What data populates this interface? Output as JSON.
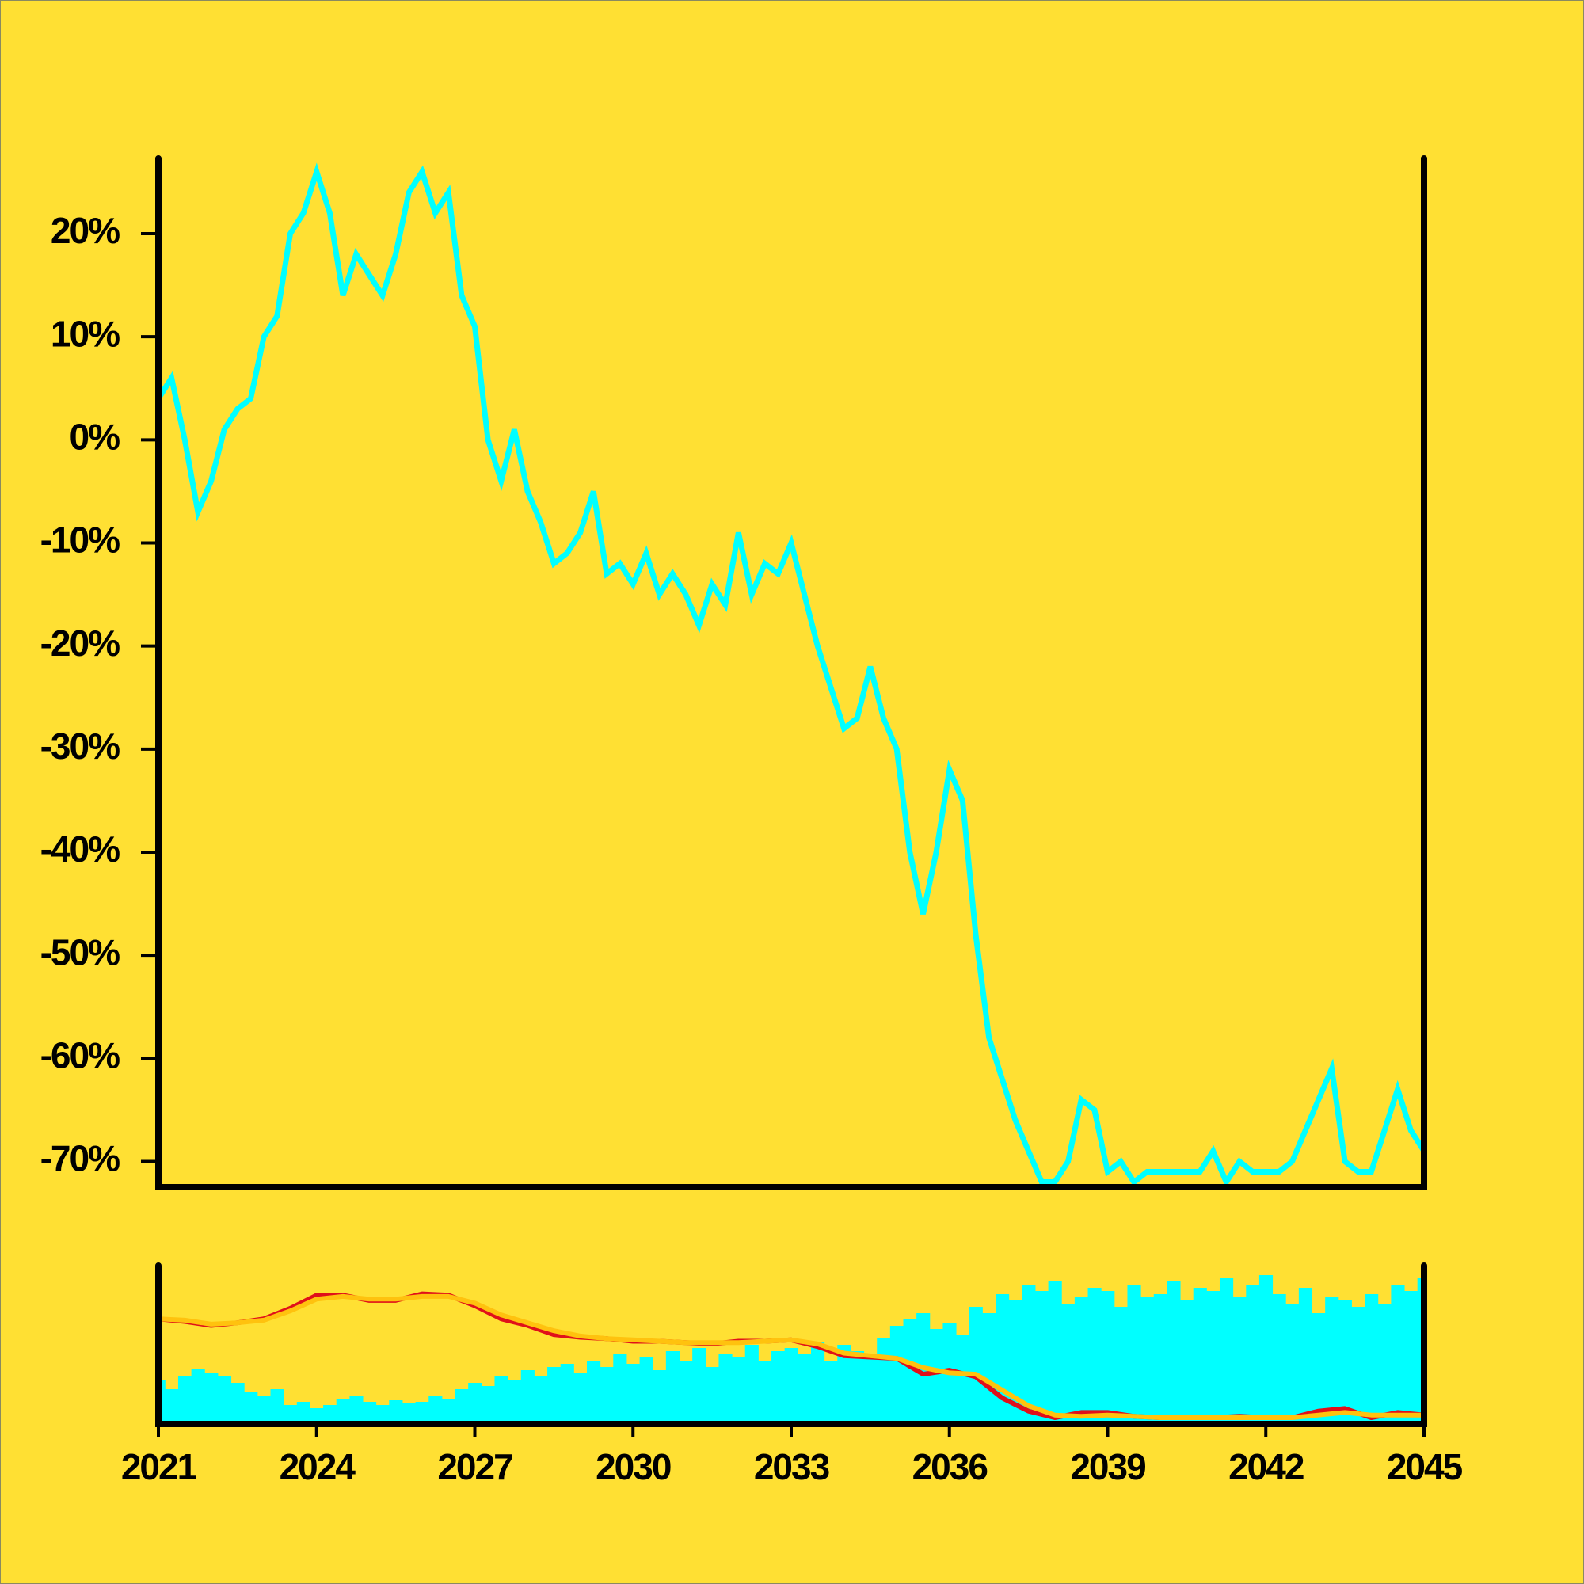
{
  "chart_data": [
    {
      "type": "line",
      "x": [
        2021,
        2021.25,
        2021.5,
        2021.75,
        2022,
        2022.25,
        2022.5,
        2022.75,
        2023,
        2023.25,
        2023.5,
        2023.75,
        2024,
        2024.25,
        2024.5,
        2024.75,
        2025,
        2025.25,
        2025.5,
        2025.75,
        2026,
        2026.25,
        2026.5,
        2026.75,
        2027,
        2027.25,
        2027.5,
        2027.75,
        2028,
        2028.25,
        2028.5,
        2028.75,
        2029,
        2029.25,
        2029.5,
        2029.75,
        2030,
        2030.25,
        2030.5,
        2030.75,
        2031,
        2031.25,
        2031.5,
        2031.75,
        2032,
        2032.25,
        2032.5,
        2032.75,
        2033,
        2033.25,
        2033.5,
        2033.75,
        2034,
        2034.25,
        2034.5,
        2034.75,
        2035,
        2035.25,
        2035.5,
        2035.75,
        2036,
        2036.25,
        2036.5,
        2036.75,
        2037,
        2037.25,
        2037.5,
        2037.75,
        2038,
        2038.25,
        2038.5,
        2038.75,
        2039,
        2039.25,
        2039.5,
        2039.75,
        2040,
        2040.25,
        2040.5,
        2040.75,
        2041,
        2041.25,
        2041.5,
        2041.75,
        2042,
        2042.25,
        2042.5,
        2042.75,
        2043,
        2043.25,
        2043.5,
        2043.75,
        2044,
        2044.25,
        2044.5,
        2044.75,
        2045
      ],
      "values": [
        4,
        6,
        0,
        -7,
        -4,
        1,
        3,
        4,
        10,
        12,
        20,
        22,
        26,
        22,
        14,
        18,
        16,
        14,
        18,
        24,
        26,
        22,
        24,
        14,
        11,
        0,
        -4,
        1,
        -5,
        -8,
        -12,
        -11,
        -9,
        -5,
        -13,
        -12,
        -14,
        -11,
        -15,
        -13,
        -15,
        -18,
        -14,
        -16,
        -9,
        -15,
        -12,
        -13,
        -10,
        -15,
        -20,
        -24,
        -28,
        -27,
        -22,
        -27,
        -30,
        -40,
        -46,
        -40,
        -32,
        -35,
        -48,
        -58,
        -62,
        -66,
        -69,
        -72,
        -72,
        -70,
        -64,
        -65,
        -71,
        -70,
        -72,
        -71,
        -71,
        -71,
        -71,
        -71,
        -69,
        -72,
        -70,
        -71,
        -71,
        -71,
        -70,
        -67,
        -64,
        -61,
        -70,
        -71,
        -71,
        -67,
        -63,
        -67,
        -69
      ],
      "color": "#00ffff",
      "xlim": [
        2021,
        2045
      ],
      "ylim": [
        -72.5,
        27.3
      ],
      "yticks": [
        {
          "value": 20,
          "label": "20%"
        },
        {
          "value": 10,
          "label": "10%"
        },
        {
          "value": 0,
          "label": "0%"
        },
        {
          "value": -10,
          "label": "-10%"
        },
        {
          "value": -20,
          "label": "-20%"
        },
        {
          "value": -30,
          "label": "-30%"
        },
        {
          "value": -40,
          "label": "-40%"
        },
        {
          "value": -50,
          "label": "-50%"
        },
        {
          "value": -60,
          "label": "-60%"
        },
        {
          "value": -70,
          "label": "-70%"
        }
      ]
    },
    {
      "type": "bar",
      "x": [
        2021,
        2021.25,
        2021.5,
        2021.75,
        2022,
        2022.25,
        2022.5,
        2022.75,
        2023,
        2023.25,
        2023.5,
        2023.75,
        2024,
        2024.25,
        2024.5,
        2024.75,
        2025,
        2025.25,
        2025.5,
        2025.75,
        2026,
        2026.25,
        2026.5,
        2026.75,
        2027,
        2027.25,
        2027.5,
        2027.75,
        2028,
        2028.25,
        2028.5,
        2028.75,
        2029,
        2029.25,
        2029.5,
        2029.75,
        2030,
        2030.25,
        2030.5,
        2030.75,
        2031,
        2031.25,
        2031.5,
        2031.75,
        2032,
        2032.25,
        2032.5,
        2032.75,
        2033,
        2033.25,
        2033.5,
        2033.75,
        2034,
        2034.25,
        2034.5,
        2034.75,
        2035,
        2035.25,
        2035.5,
        2035.75,
        2036,
        2036.25,
        2036.5,
        2036.75,
        2037,
        2037.25,
        2037.5,
        2037.75,
        2038,
        2038.25,
        2038.5,
        2038.75,
        2039,
        2039.25,
        2039.5,
        2039.75,
        2040,
        2040.25,
        2040.5,
        2040.75,
        2041,
        2041.25,
        2041.5,
        2041.75,
        2042,
        2042.25,
        2042.5,
        2042.75,
        2043,
        2043.25,
        2043.5,
        2043.75,
        2044,
        2044.25,
        2044.5,
        2044.75,
        2045
      ],
      "values": [
        28,
        22,
        30,
        35,
        32,
        30,
        26,
        20,
        18,
        22,
        12,
        14,
        10,
        12,
        16,
        18,
        14,
        12,
        15,
        13,
        14,
        18,
        16,
        22,
        26,
        24,
        30,
        28,
        34,
        30,
        36,
        38,
        32,
        40,
        36,
        44,
        38,
        42,
        34,
        46,
        40,
        48,
        36,
        44,
        42,
        50,
        40,
        46,
        48,
        44,
        52,
        40,
        50,
        46,
        42,
        54,
        62,
        66,
        70,
        60,
        64,
        56,
        74,
        70,
        82,
        78,
        88,
        84,
        90,
        76,
        80,
        86,
        84,
        74,
        88,
        80,
        82,
        90,
        78,
        86,
        84,
        92,
        80,
        88,
        94,
        82,
        76,
        86,
        70,
        80,
        78,
        74,
        82,
        76,
        88,
        84,
        92
      ],
      "color": "#00ffff",
      "xlim": [
        2021,
        2045
      ],
      "ylim": [
        0,
        100
      ],
      "xticks": [
        2021,
        2024,
        2027,
        2030,
        2033,
        2036,
        2039,
        2042,
        2045
      ],
      "y2lim": [
        -75.8,
        44.4
      ],
      "series": [
        {
          "color": "#e0101a",
          "axis": "y2",
          "x": [
            2021,
            2021.5,
            2022,
            2022.5,
            2023,
            2023.5,
            2024,
            2024.5,
            2025,
            2025.5,
            2026,
            2026.5,
            2027,
            2027.5,
            2028,
            2028.5,
            2029,
            2029.5,
            2030,
            2030.5,
            2031,
            2031.5,
            2032,
            2032.5,
            2033,
            2033.5,
            2034,
            2034.5,
            2035,
            2035.5,
            2036,
            2036.5,
            2037,
            2037.5,
            2038,
            2038.5,
            2039,
            2039.5,
            2040,
            2040.5,
            2041,
            2041.5,
            2042,
            2042.5,
            2043,
            2043.5,
            2044,
            2044.5,
            2045
          ],
          "values": [
            4,
            2,
            -1,
            1,
            4,
            12,
            22,
            22,
            18,
            18,
            23,
            22,
            14,
            4,
            -1,
            -8,
            -10,
            -11,
            -13,
            -13,
            -14,
            -15,
            -13,
            -13,
            -12,
            -17,
            -24,
            -25,
            -26,
            -38,
            -35,
            -40,
            -56,
            -66,
            -71,
            -67,
            -67,
            -70,
            -71,
            -71,
            -71,
            -70,
            -71,
            -71,
            -66,
            -64,
            -71,
            -67,
            -69
          ]
        },
        {
          "color": "#ffc20e",
          "axis": "y2",
          "x": [
            2021,
            2021.5,
            2022,
            2022.5,
            2023,
            2023.5,
            2024,
            2024.5,
            2025,
            2025.5,
            2026,
            2026.5,
            2027,
            2027.5,
            2028,
            2028.5,
            2029,
            2029.5,
            2030,
            2030.5,
            2031,
            2031.5,
            2032,
            2032.5,
            2033,
            2033.5,
            2034,
            2034.5,
            2035,
            2035.5,
            2036,
            2036.5,
            2037,
            2037.5,
            2038,
            2038.5,
            2039,
            2039.5,
            2040,
            2040.5,
            2041,
            2041.5,
            2042,
            2042.5,
            2043,
            2043.5,
            2044,
            2044.5,
            2045
          ],
          "values": [
            4,
            3,
            0,
            1,
            3,
            10,
            19,
            21,
            19,
            19,
            21,
            21,
            16,
            7,
            1,
            -5,
            -9,
            -11,
            -12,
            -13,
            -14,
            -14,
            -14,
            -13,
            -12,
            -15,
            -22,
            -24,
            -26,
            -33,
            -37,
            -38,
            -50,
            -62,
            -69,
            -70,
            -69,
            -70,
            -71,
            -71,
            -71,
            -71,
            -71,
            -71,
            -69,
            -67,
            -69,
            -69,
            -69
          ]
        }
      ]
    }
  ]
}
